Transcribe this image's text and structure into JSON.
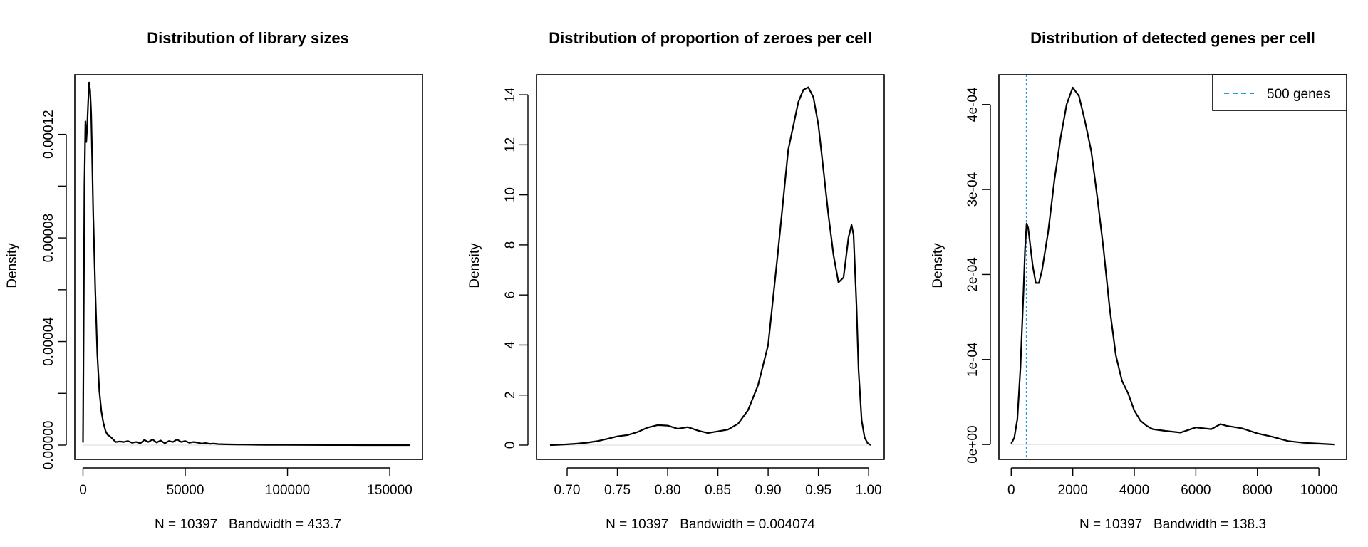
{
  "chart_data": [
    {
      "type": "line",
      "title": "Distribution of library sizes",
      "xlabel": "N = 10397   Bandwidth = 433.7",
      "ylabel": "Density",
      "xlim": [
        -4000,
        166000
      ],
      "ylim": [
        -5.5e-06,
        0.000143
      ],
      "xticks": [
        0,
        50000,
        100000,
        150000
      ],
      "xtick_labels": [
        "0",
        "50000",
        "100000",
        "150000"
      ],
      "yticks": [
        0,
        2e-05,
        4e-05,
        6e-05,
        8e-05,
        0.0001,
        0.00012
      ],
      "ytick_labels": [
        "0.00000",
        "",
        "0.00004",
        "",
        "0.00008",
        "",
        "0.00012"
      ],
      "series": [
        {
          "name": "density",
          "x": [
            0,
            300,
            700,
            1200,
            1600,
            2000,
            2500,
            3000,
            3500,
            4000,
            4500,
            5000,
            6000,
            7000,
            8000,
            9000,
            10000,
            11000,
            12000,
            13000,
            14000,
            15000,
            16000,
            18000,
            20000,
            22000,
            24000,
            26000,
            28000,
            30000,
            32000,
            34000,
            36000,
            38000,
            40000,
            42000,
            44000,
            46000,
            48000,
            50000,
            52000,
            54000,
            56000,
            58000,
            60000,
            62000,
            64000,
            66000,
            70000,
            75000,
            80000,
            85000,
            90000,
            95000,
            100000,
            110000,
            120000,
            130000,
            140000,
            150000,
            160000
          ],
          "y": [
            1e-06,
            4e-05,
            0.0001,
            0.000125,
            0.000117,
            0.000122,
            0.000132,
            0.00014,
            0.000137,
            0.000128,
            0.00011,
            9e-05,
            6e-05,
            3.5e-05,
            2.1e-05,
            1.3e-05,
            8.5e-06,
            5.5e-06,
            4e-06,
            3.5e-06,
            2.8e-06,
            2e-06,
            1.2e-06,
            1.4e-06,
            1.2e-06,
            1.6e-06,
            9e-07,
            1.2e-06,
            7e-07,
            2e-06,
            1.2e-06,
            2.2e-06,
            1e-06,
            1.8e-06,
            7e-07,
            1.6e-06,
            1.2e-06,
            2.2e-06,
            1.2e-06,
            1.6e-06,
            9e-07,
            1.2e-06,
            1e-06,
            6e-07,
            8e-07,
            5e-07,
            6e-07,
            4e-07,
            3e-07,
            2.5e-07,
            2e-07,
            1.5e-07,
            1e-07,
            1e-07,
            8e-08,
            5e-08,
            3e-08,
            2e-08,
            1e-08,
            5e-09,
            0
          ]
        }
      ]
    },
    {
      "type": "line",
      "title": "Distribution of proportion of zeroes per cell",
      "xlabel": "N = 10397   Bandwidth = 0.004074",
      "ylabel": "Density",
      "xlim": [
        0.6695,
        1.0155
      ],
      "ylim": [
        -0.57,
        14.8
      ],
      "xticks": [
        0.7,
        0.75,
        0.8,
        0.85,
        0.9,
        0.95,
        1.0
      ],
      "xtick_labels": [
        "0.70",
        "0.75",
        "0.80",
        "0.85",
        "0.90",
        "0.95",
        "1.00"
      ],
      "yticks": [
        0,
        2,
        4,
        6,
        8,
        10,
        12,
        14
      ],
      "ytick_labels": [
        "0",
        "2",
        "4",
        "6",
        "8",
        "10",
        "12",
        "14"
      ],
      "series": [
        {
          "name": "density",
          "x": [
            0.683,
            0.69,
            0.7,
            0.71,
            0.72,
            0.73,
            0.74,
            0.75,
            0.76,
            0.77,
            0.78,
            0.79,
            0.8,
            0.81,
            0.82,
            0.83,
            0.84,
            0.85,
            0.86,
            0.87,
            0.88,
            0.89,
            0.9,
            0.91,
            0.92,
            0.93,
            0.935,
            0.94,
            0.945,
            0.95,
            0.955,
            0.96,
            0.965,
            0.97,
            0.975,
            0.98,
            0.983,
            0.985,
            0.988,
            0.99,
            0.993,
            0.996,
            0.999,
            1.002
          ],
          "y": [
            0,
            0.01,
            0.03,
            0.06,
            0.1,
            0.16,
            0.25,
            0.35,
            0.4,
            0.52,
            0.7,
            0.8,
            0.78,
            0.65,
            0.72,
            0.58,
            0.48,
            0.55,
            0.62,
            0.85,
            1.4,
            2.4,
            4.0,
            7.8,
            11.8,
            13.7,
            14.2,
            14.3,
            13.9,
            12.8,
            11.0,
            9.2,
            7.6,
            6.5,
            6.7,
            8.3,
            8.8,
            8.4,
            5.5,
            3.0,
            1.0,
            0.3,
            0.08,
            0
          ]
        }
      ]
    },
    {
      "type": "line",
      "title": "Distribution of detected genes per cell",
      "xlabel": "N = 10397   Bandwidth = 138.3",
      "ylabel": "Density",
      "xlim": [
        -400,
        10900
      ],
      "ylim": [
        -1.75e-05,
        0.000435
      ],
      "xticks": [
        0,
        2000,
        4000,
        6000,
        8000,
        10000
      ],
      "xtick_labels": [
        "0",
        "2000",
        "4000",
        "6000",
        "8000",
        "10000"
      ],
      "yticks": [
        0,
        0.0001,
        0.0002,
        0.0003,
        0.0004
      ],
      "ytick_labels": [
        "0e+00",
        "1e-04",
        "2e-04",
        "3e-04",
        "4e-04"
      ],
      "vline": {
        "x": 500,
        "color": "#1f9bd8",
        "label": "500 genes"
      },
      "legend": {
        "position": "top-right",
        "entries": [
          "500 genes"
        ]
      },
      "series": [
        {
          "name": "density",
          "x": [
            0,
            100,
            200,
            300,
            400,
            450,
            500,
            550,
            600,
            700,
            800,
            900,
            1000,
            1200,
            1400,
            1600,
            1800,
            2000,
            2200,
            2400,
            2600,
            2800,
            3000,
            3200,
            3400,
            3600,
            3800,
            4000,
            4200,
            4400,
            4600,
            5000,
            5500,
            6000,
            6500,
            6800,
            7000,
            7500,
            8000,
            8500,
            9000,
            9500,
            10000,
            10500
          ],
          "y": [
            1e-06,
            8e-06,
            3e-05,
            9e-05,
            0.00018,
            0.00023,
            0.00026,
            0.000255,
            0.00024,
            0.00021,
            0.00019,
            0.00019,
            0.000205,
            0.00025,
            0.00031,
            0.00036,
            0.0004,
            0.00042,
            0.00041,
            0.00038,
            0.000345,
            0.00029,
            0.00023,
            0.00016,
            0.000105,
            7.5e-05,
            6e-05,
            4e-05,
            2.8e-05,
            2.2e-05,
            1.8e-05,
            1.6e-05,
            1.4e-05,
            2e-05,
            1.8e-05,
            2.4e-05,
            2.2e-05,
            1.9e-05,
            1.3e-05,
            9e-06,
            4e-06,
            2e-06,
            1e-06,
            0
          ]
        }
      ]
    }
  ]
}
